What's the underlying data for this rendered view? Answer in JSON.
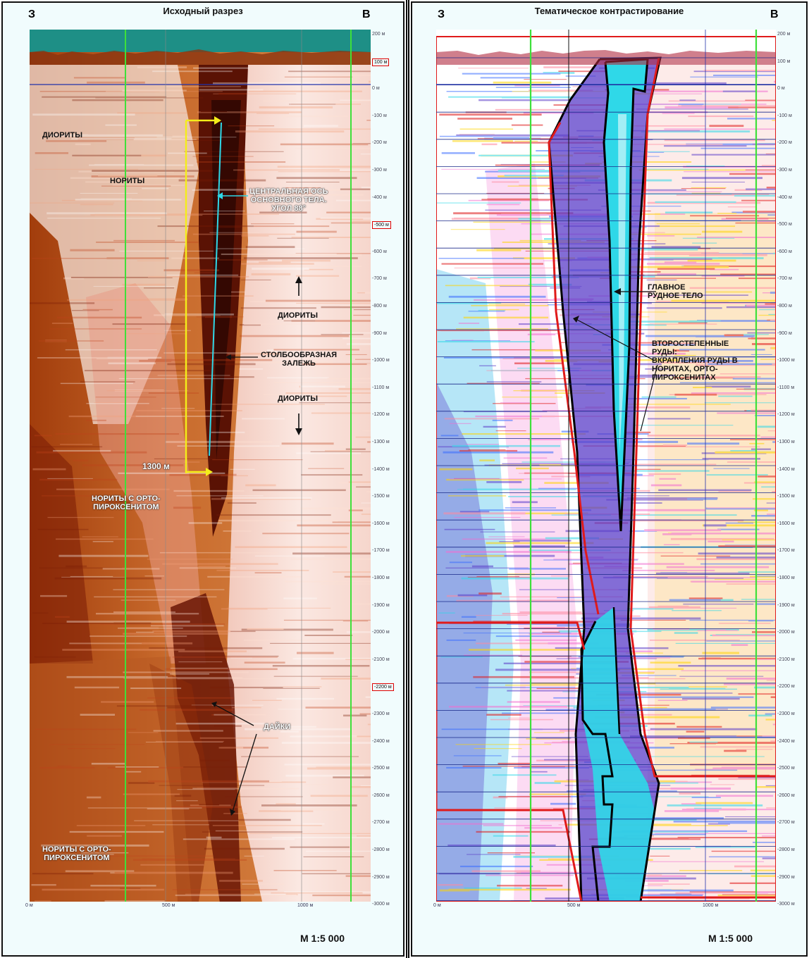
{
  "left_panel": {
    "title": "Исходный разрез",
    "west": "З",
    "east": "В",
    "scale": "М 1:5 000",
    "depth_ticks": [
      "200 м",
      "100 м",
      "0 м",
      "-100 м",
      "-200 м",
      "-300 м",
      "-400 м",
      "-500 м",
      "-600 м",
      "-700 м",
      "-800 м",
      "-900 м",
      "-1000 м",
      "-1100 м",
      "-1200 м",
      "-1300 м",
      "-1400 м",
      "-1500 м",
      "-1600 м",
      "-1700 м",
      "-1800 м",
      "-1900 м",
      "-2000 м",
      "-2100 м",
      "-2200 м",
      "-2300 м",
      "-2400 м",
      "-2500 м",
      "-2600 м",
      "-2700 м",
      "-2800 м",
      "-2900 м",
      "-3000 м"
    ],
    "highlighted_ticks": [
      "100 м",
      "-500 м",
      "-2200 м"
    ],
    "x_ticks": [
      "0 м",
      "500 м",
      "1000 м"
    ],
    "labels": {
      "diorites_upper_left": "ДИОРИТЫ",
      "norites": "НОРИТЫ",
      "central_axis": "ЦЕНТРАЛЬНАЯ ОСЬ\nОСНОВНОГО ТЕЛА.\nУГОЛ 88°",
      "diorites_mid": "ДИОРИТЫ",
      "column_deposit": "СТОЛБООБРАЗНАЯ\nЗАЛЕЖЬ",
      "diorites_low": "ДИОРИТЫ",
      "length": "1300 м",
      "norites_ortho_1": "НОРИТЫ С ОРТО-\nПИРОКСЕНИТОМ",
      "dikes": "ДАЙКИ",
      "norites_ortho_2": "НОРИТЫ С ОРТО-\nПИРОКСЕНИТОМ"
    }
  },
  "right_panel": {
    "title": "Тематическое контрастирование",
    "west": "З",
    "east": "В",
    "scale": "М 1:5 000",
    "depth_ticks": [
      "200 м",
      "100 м",
      "0 м",
      "-100 м",
      "-200 м",
      "-300 м",
      "-400 м",
      "-500 м",
      "-600 м",
      "-700 м",
      "-800 м",
      "-900 м",
      "-1000 м",
      "-1100 м",
      "-1200 м",
      "-1300 м",
      "-1400 м",
      "-1500 м",
      "-1600 м",
      "-1700 м",
      "-1800 м",
      "-1900 м",
      "-2000 м",
      "-2100 м",
      "-2200 м",
      "-2300 м",
      "-2400 м",
      "-2500 м",
      "-2600 м",
      "-2700 м",
      "-2800 м",
      "-2900 м",
      "-3000 м"
    ],
    "x_ticks": [
      "0 м",
      "500 м",
      "1000 м"
    ],
    "labels": {
      "main_ore_body": "ГЛАВНОЕ\nРУДНОЕ ТЕЛО",
      "secondary_ores": "ВТОРОСТЕПЕННЫЕ\nРУДЫ:\nВКРАПЛЕНИЯ РУДЫ В\nНОРИТАХ, ОРТО-\nПИРОКСЕНИТАХ"
    }
  },
  "colors": {
    "teal": "#1e8f86",
    "orange": "#c8642a",
    "dark_red": "#5a1204",
    "pink_white": "#f6d8d0",
    "green_line": "#3ee03a",
    "yellow": "#f4ee1a",
    "cyan": "#2fd8e8",
    "blue_purple": "#5a3cc8",
    "red": "#e01a1a"
  }
}
